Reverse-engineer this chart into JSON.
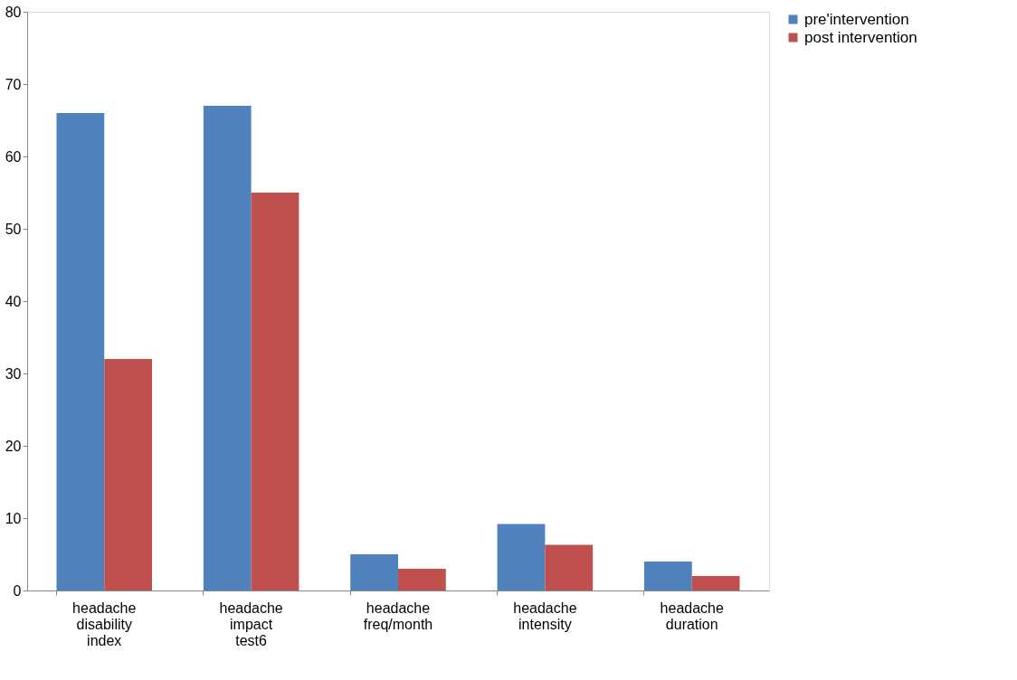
{
  "chart_data": {
    "type": "bar",
    "categories": [
      "headache disability index",
      "headache impact test6",
      "headache freq/month",
      "headache intensity",
      "headache duration"
    ],
    "series": [
      {
        "name": "pre'intervention",
        "color": "#4f81bd",
        "values": [
          66,
          67,
          5,
          9.2,
          4
        ]
      },
      {
        "name": "post intervention",
        "color": "#c0504d",
        "values": [
          32,
          55,
          3,
          6.3,
          2
        ]
      }
    ],
    "ylim": [
      0,
      80
    ],
    "yticks": [
      0,
      10,
      20,
      30,
      40,
      50,
      60,
      70,
      80
    ],
    "grid": false,
    "legend": "right"
  }
}
